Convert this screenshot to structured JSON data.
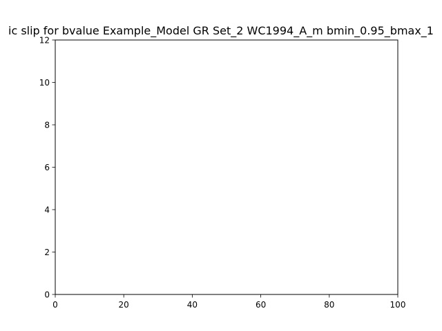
{
  "chart_data": {
    "type": "line",
    "title": "ic slip for bvalue Example_Model GR Set_2 WC1994_A_m bmin_0.95_bmax_1",
    "xlabel": "",
    "ylabel": "",
    "xlim": [
      0,
      100
    ],
    "ylim": [
      0,
      12
    ],
    "x_ticks": [
      0,
      20,
      40,
      60,
      80,
      100
    ],
    "y_ticks": [
      0,
      2,
      4,
      6,
      8,
      10,
      12
    ],
    "grid": false,
    "series": []
  }
}
